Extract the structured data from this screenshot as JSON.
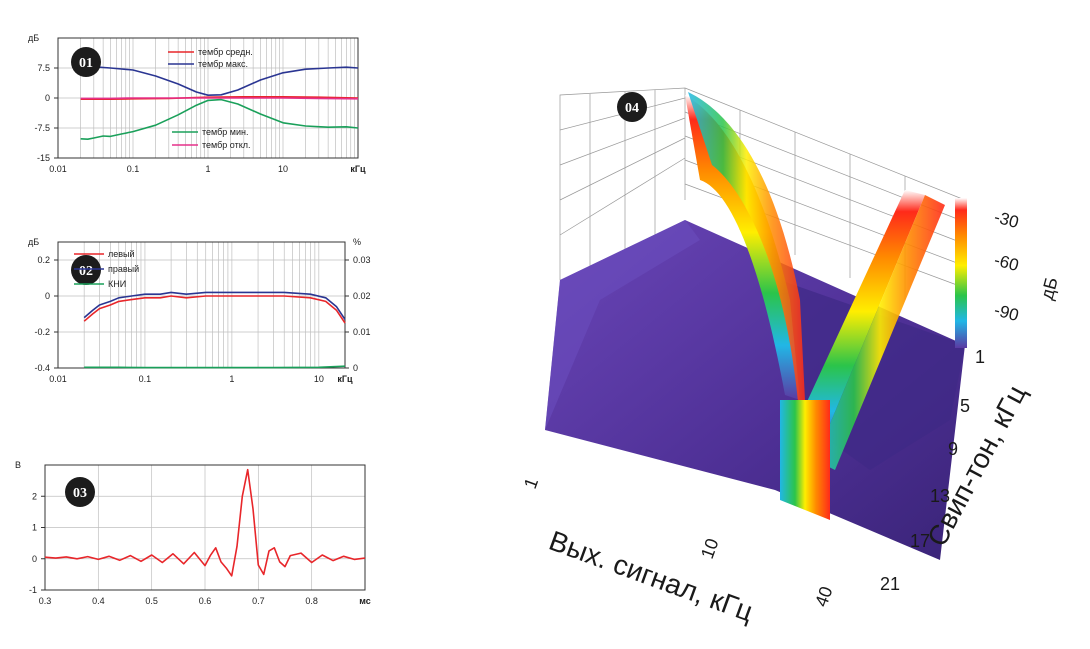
{
  "colors": {
    "red": "#e8262a",
    "blue": "#2a3592",
    "green": "#1aa05a",
    "magenta": "#e5308a",
    "badge": "#1c1c1c",
    "surface_base": "#5b3aa3"
  },
  "chart_data": [
    {
      "id": "01",
      "type": "line",
      "badge": "01",
      "ylabel": "дБ",
      "xunit": "кГц",
      "x_scale": "log",
      "xlim": [
        0.01,
        100
      ],
      "ylim": [
        -15,
        15
      ],
      "yticks": [
        "-15",
        "-7.5",
        "0",
        "7.5"
      ],
      "ytick_values": [
        -15,
        -7.5,
        0,
        7.5
      ],
      "xticks": [
        "0.01",
        "0.1",
        "1",
        "10",
        "кГц"
      ],
      "xtick_values": [
        0.01,
        0.1,
        1,
        10
      ],
      "legend_top": [
        "тембр средн.",
        "тембр макс."
      ],
      "legend_bottom": [
        "тембр мин.",
        "тембр откл."
      ],
      "series": [
        {
          "name": "тембр средн.",
          "color": "red",
          "x": [
            0.02,
            0.05,
            0.1,
            0.3,
            1,
            3,
            10,
            30,
            100
          ],
          "y": [
            -0.3,
            -0.3,
            -0.2,
            -0.1,
            0.2,
            0.3,
            0.3,
            0.2,
            0
          ]
        },
        {
          "name": "тембр макс.",
          "color": "blue",
          "x": [
            0.02,
            0.03,
            0.05,
            0.1,
            0.2,
            0.4,
            0.7,
            1,
            1.5,
            2.5,
            5,
            10,
            20,
            40,
            70,
            100
          ],
          "y": [
            7.8,
            7.8,
            7.5,
            7,
            5.5,
            3.5,
            1.5,
            0.7,
            0.8,
            2,
            4.5,
            6.3,
            7.2,
            7.5,
            7.7,
            7.5
          ]
        },
        {
          "name": "тембр мин.",
          "color": "green",
          "x": [
            0.02,
            0.025,
            0.03,
            0.04,
            0.05,
            0.07,
            0.1,
            0.2,
            0.4,
            0.7,
            1,
            1.5,
            2.5,
            5,
            10,
            20,
            40,
            70,
            100
          ],
          "y": [
            -10.2,
            -10.3,
            -10,
            -9.5,
            -9.6,
            -9,
            -8.4,
            -6.8,
            -4.2,
            -1.8,
            -0.6,
            -0.4,
            -1.5,
            -4,
            -6.2,
            -7,
            -7.3,
            -7.2,
            -7.5
          ]
        },
        {
          "name": "тембр откл.",
          "color": "magenta",
          "x": [
            0.02,
            0.05,
            0.1,
            0.3,
            1,
            3,
            10,
            30,
            100
          ],
          "y": [
            -0.1,
            -0.1,
            0,
            0,
            0,
            0,
            0,
            -0.1,
            -0.2
          ]
        }
      ]
    },
    {
      "id": "02",
      "type": "line",
      "badge": "02",
      "ylabel": "дБ",
      "y2label": "%",
      "xunit": "кГц",
      "x_scale": "log",
      "xlim": [
        0.01,
        20
      ],
      "ylim": [
        -0.4,
        0.3
      ],
      "y2lim": [
        0,
        0.035
      ],
      "yticks": [
        "-0.4",
        "-0.2",
        "0",
        "0.2"
      ],
      "ytick_values": [
        -0.4,
        -0.2,
        0,
        0.2
      ],
      "y2ticks": [
        "0",
        "0.01",
        "0.02",
        "0.03"
      ],
      "y2tick_values": [
        0,
        0.01,
        0.02,
        0.03
      ],
      "xticks": [
        "0.01",
        "0.1",
        "1",
        "10",
        "кГц"
      ],
      "xtick_values": [
        0.01,
        0.1,
        1,
        10
      ],
      "legend": [
        "левый",
        "правый",
        "КНИ"
      ],
      "series": [
        {
          "name": "левый",
          "color": "red",
          "axis": "left",
          "x": [
            0.02,
            0.025,
            0.03,
            0.04,
            0.05,
            0.07,
            0.1,
            0.15,
            0.2,
            0.3,
            0.5,
            1,
            2,
            4,
            8,
            12,
            16,
            20
          ],
          "y": [
            -0.14,
            -0.1,
            -0.07,
            -0.05,
            -0.03,
            -0.02,
            -0.01,
            -0.01,
            0,
            -0.01,
            0,
            0,
            0,
            0,
            -0.01,
            -0.03,
            -0.08,
            -0.15
          ]
        },
        {
          "name": "правый",
          "color": "blue",
          "axis": "left",
          "x": [
            0.02,
            0.025,
            0.03,
            0.04,
            0.05,
            0.07,
            0.1,
            0.15,
            0.2,
            0.3,
            0.5,
            1,
            2,
            4,
            8,
            12,
            16,
            20
          ],
          "y": [
            -0.12,
            -0.08,
            -0.05,
            -0.03,
            -0.01,
            0,
            0.01,
            0.01,
            0.02,
            0.01,
            0.02,
            0.02,
            0.02,
            0.02,
            0.01,
            -0.01,
            -0.06,
            -0.13
          ]
        },
        {
          "name": "КНИ",
          "color": "green",
          "axis": "right",
          "x": [
            0.02,
            0.05,
            0.1,
            0.3,
            1,
            3,
            10,
            20
          ],
          "y": [
            0.0002,
            0.0002,
            0.0001,
            0.0001,
            0.0001,
            0.0001,
            0.0002,
            0.0005
          ]
        }
      ]
    },
    {
      "id": "03",
      "type": "line",
      "badge": "03",
      "ylabel": "В",
      "xunit": "мс",
      "xlim": [
        0.3,
        0.9
      ],
      "ylim": [
        -1,
        3
      ],
      "yticks": [
        "-1",
        "0",
        "1",
        "2"
      ],
      "ytick_values": [
        -1,
        0,
        1,
        2
      ],
      "xticks": [
        "0.3",
        "0.4",
        "0.5",
        "0.6",
        "0.7",
        "0.8",
        "мс"
      ],
      "xtick_values": [
        0.3,
        0.4,
        0.5,
        0.6,
        0.7,
        0.8
      ],
      "series": [
        {
          "name": "",
          "color": "red",
          "x": [
            0.3,
            0.32,
            0.34,
            0.36,
            0.38,
            0.4,
            0.42,
            0.44,
            0.46,
            0.48,
            0.5,
            0.52,
            0.54,
            0.56,
            0.58,
            0.6,
            0.61,
            0.62,
            0.63,
            0.64,
            0.65,
            0.66,
            0.67,
            0.68,
            0.69,
            0.7,
            0.71,
            0.72,
            0.73,
            0.74,
            0.75,
            0.76,
            0.78,
            0.8,
            0.82,
            0.84,
            0.86,
            0.88,
            0.9
          ],
          "y": [
            0.05,
            0.02,
            0.06,
            0.0,
            0.07,
            -0.02,
            0.08,
            -0.05,
            0.1,
            -0.08,
            0.12,
            -0.12,
            0.16,
            -0.16,
            0.2,
            -0.22,
            0.1,
            0.35,
            -0.1,
            -0.3,
            -0.55,
            0.4,
            2.0,
            2.85,
            1.6,
            -0.2,
            -0.5,
            0.25,
            0.35,
            -0.1,
            -0.25,
            0.1,
            0.18,
            -0.12,
            0.12,
            -0.06,
            0.08,
            -0.02,
            0.02
          ]
        }
      ]
    },
    {
      "id": "04",
      "type": "surface",
      "badge": "04",
      "xlabel": "Вых. сигнал, кГц",
      "ylabel": "Свип-тон, кГц",
      "zlabel": "дБ",
      "xticks": [
        "1",
        "10",
        "40"
      ],
      "yticks": [
        "1",
        "5",
        "9",
        "13",
        "17",
        "21"
      ],
      "zticks": [
        "-30",
        "-60",
        "-90"
      ],
      "colormap": [
        "#ff2a1a",
        "#ff8a00",
        "#ffee00",
        "#2bc44a",
        "#21b7e6",
        "#5b3aa3"
      ]
    }
  ]
}
